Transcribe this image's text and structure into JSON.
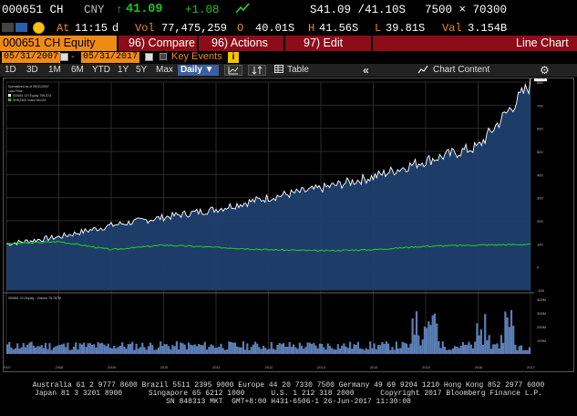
{
  "quote": {
    "ticker": "000651 CH",
    "currency": "CNY",
    "arrow": "↑",
    "last": "41.09",
    "change": "+1.08",
    "bid_ask": "S41.09 /41.10S",
    "size": "7500 × 70300"
  },
  "detail": {
    "at_label": "At",
    "time": "11:15",
    "d": "d",
    "vol_label": "Vol",
    "volume": "77,475,259",
    "open_label": "O",
    "open": "40.01S",
    "high_label": "H",
    "high": "41.56S",
    "low_label": "L",
    "low": "39.81S",
    "val_label": "Val",
    "value": "3.154B"
  },
  "menu": {
    "security": "000651 CH Equity",
    "compare": "96) Compare",
    "actions": "96) Actions",
    "edit": "97) Edit",
    "view_title": "Line Chart"
  },
  "dates": {
    "start": "05/31/2007",
    "end": "05/31/2017",
    "key_events": "Key Events"
  },
  "toolbar": {
    "ranges": [
      "1D",
      "3D",
      "1M",
      "6M",
      "YTD",
      "1Y",
      "5Y",
      "Max"
    ],
    "frequency": "Daily ▼",
    "table": "Table",
    "collapse": "«",
    "chart_content": "Chart Content",
    "settings_icon": "gear-icon"
  },
  "colors": {
    "accent_orange": "#f08a14",
    "menu_red": "#8c0c18",
    "up_green": "#22c322",
    "price_fill": "#1f3f6e",
    "price_line": "#ffffff",
    "index_line": "#1ec81e",
    "volume_fill": "#5b7fb5"
  },
  "chart_data": {
    "type": "area",
    "legend_header": "Normalized as of 05/31/2007",
    "legend_subheader": "Last Price",
    "legend": [
      {
        "name": "000651 CH Equity",
        "value": "799.374"
      },
      {
        "name": "SHSZ300 Index",
        "value": "98.024"
      }
    ],
    "x": [
      "2007",
      "2008",
      "2009",
      "2010",
      "2011",
      "2012",
      "2013",
      "2014",
      "2015",
      "2016",
      "2017"
    ],
    "series": [
      {
        "name": "000651 CH Equity",
        "values": [
          100,
          130,
          180,
          215,
          250,
          300,
          340,
          390,
          460,
          520,
          790
        ]
      },
      {
        "name": "SHSZ300 Index",
        "values": [
          100,
          110,
          75,
          95,
          85,
          75,
          70,
          75,
          90,
          95,
          98
        ]
      }
    ],
    "y_ticks": [
      "800",
      "700",
      "600",
      "500",
      "400",
      "300",
      "200",
      "100",
      "0",
      "-100"
    ],
    "volume_legend": "000651 CH Equity - Volume 75.787M",
    "volume_ticks": [
      "400M",
      "300M",
      "200M",
      "100M"
    ]
  },
  "footer": {
    "line1": "Australia 61 2 9777 8600 Brazil 5511 2395 9000 Europe 44 20 7330 7500 Germany 49 69 9204 1210 Hong Kong 852 2977 6000",
    "line2": "Japan 81 3 3201 8900      Singapore 65 6212 1000      U.S. 1 212 318 2000      Copyright 2017 Bloomberg Finance L.P.",
    "line3": "SN 848313 MKT  GMT+8:00 H431-6506-1 26-Jun-2017 11:30:08"
  }
}
